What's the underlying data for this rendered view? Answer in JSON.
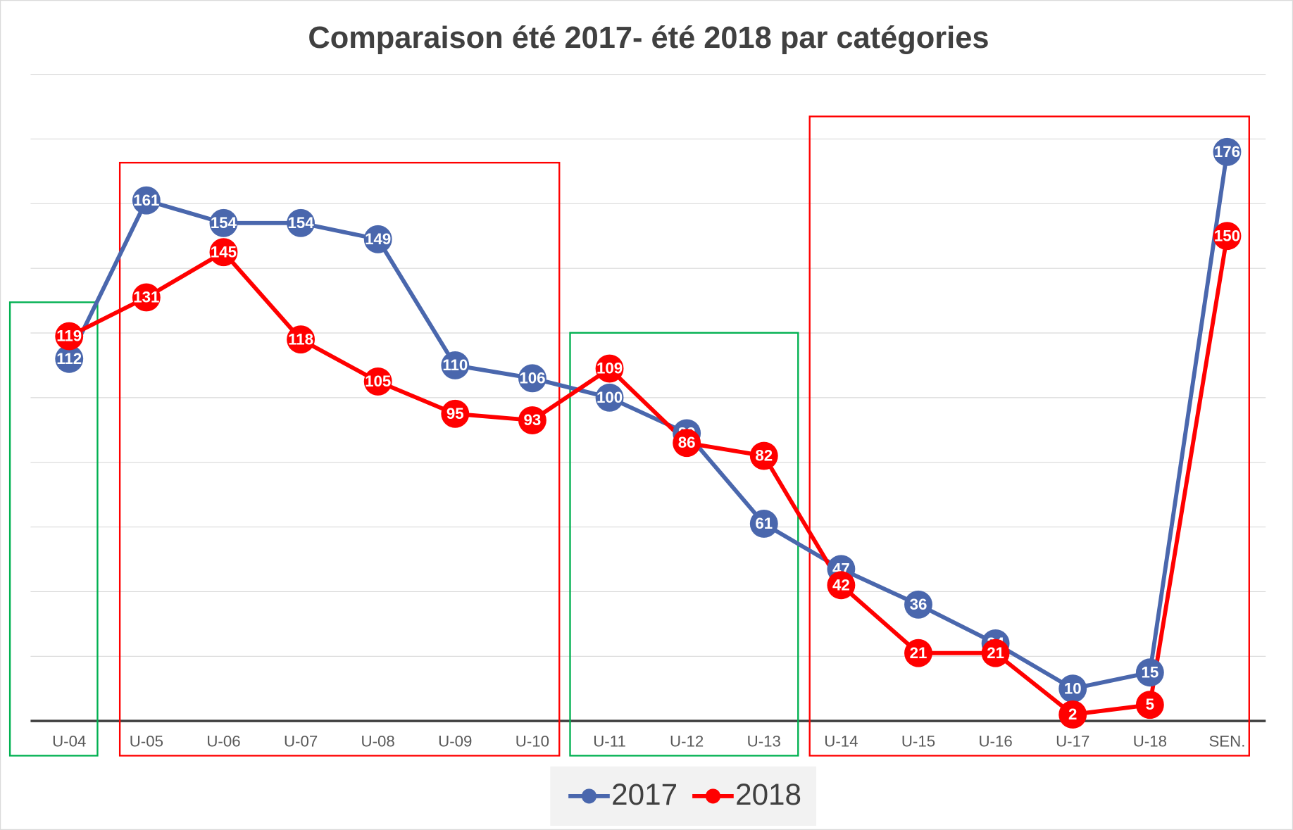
{
  "chart_data": {
    "type": "line",
    "title": "Comparaison été 2017- été 2018 par catégories",
    "categories": [
      "U-04",
      "U-05",
      "U-06",
      "U-07",
      "U-08",
      "U-09",
      "U-10",
      "U-11",
      "U-12",
      "U-13",
      "U-14",
      "U-15",
      "U-16",
      "U-17",
      "U-18",
      "SEN."
    ],
    "series": [
      {
        "name": "2017",
        "color": "#4a67ad",
        "values": [
          112,
          161,
          154,
          154,
          149,
          110,
          106,
          100,
          89,
          61,
          47,
          36,
          24,
          10,
          15,
          176
        ]
      },
      {
        "name": "2018",
        "color": "#ff0000",
        "values": [
          119,
          131,
          145,
          118,
          105,
          95,
          93,
          109,
          86,
          82,
          42,
          21,
          21,
          2,
          5,
          150
        ]
      }
    ],
    "ylim": [
      0,
      200
    ],
    "yticks": [
      0,
      20,
      40,
      60,
      80,
      100,
      120,
      140,
      160,
      180,
      200
    ],
    "grid": true,
    "legend": "bottom"
  }
}
